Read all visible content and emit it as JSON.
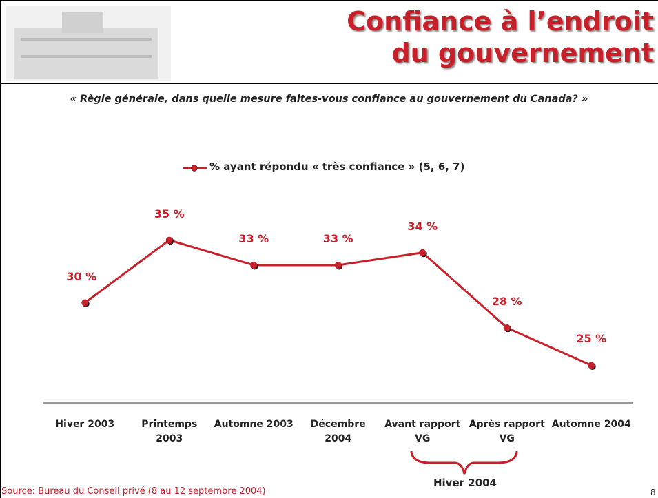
{
  "chart_data": {
    "type": "line",
    "title": "Confiance à l’endroit\ndu gouvernement",
    "subtitle": "« Règle générale, dans quelle mesure faites-vous confiance au gouvernement du Canada? »",
    "categories": [
      "Hiver 2003",
      "Printemps\n2003",
      "Automne 2003",
      "Décembre\n2004",
      "Avant rapport\nVG",
      "Après rapport\nVG",
      "Automne 2004"
    ],
    "series": [
      {
        "name": "% ayant répondu « très confiance » (5, 6, 7)",
        "color": "#c8202a",
        "values": [
          30,
          35,
          33,
          33,
          34,
          28,
          25
        ],
        "value_labels": [
          "30 %",
          "35 %",
          "33 %",
          "33 %",
          "34 %",
          "28 %",
          "25 %"
        ]
      }
    ],
    "ylim": [
      22,
      38
    ],
    "annotations": [
      "Hiver 2004"
    ],
    "source": "Source: Bureau du Conseil privé (8 au 12 septembre 2004)",
    "page_number": "8"
  }
}
